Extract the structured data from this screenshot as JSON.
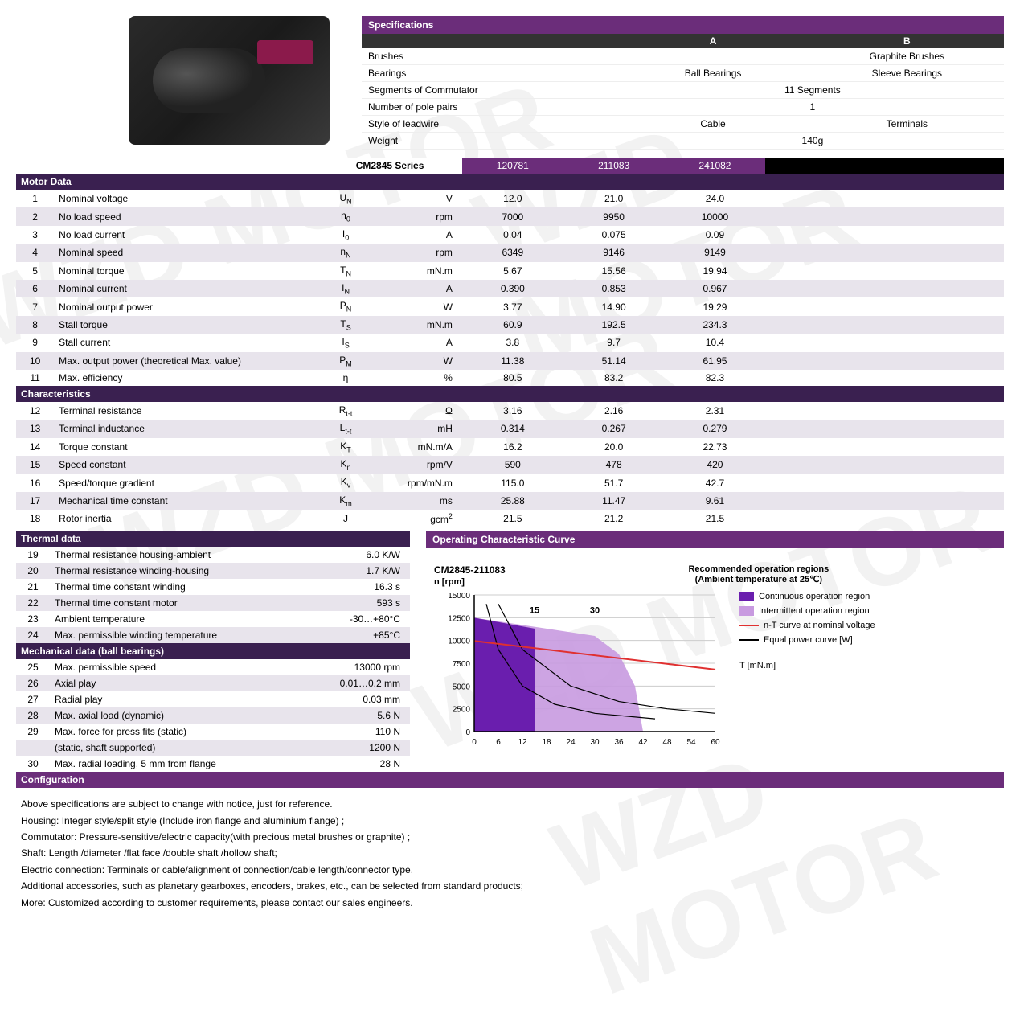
{
  "watermark": "WZD MOTOR",
  "specifications": {
    "title": "Specifications",
    "colA": "A",
    "colB": "B",
    "rows": [
      {
        "label": "Brushes",
        "a": "",
        "b": "Graphite Brushes",
        "wide": ""
      },
      {
        "label": "Bearings",
        "a": "Ball Bearings",
        "b": "Sleeve Bearings",
        "wide": ""
      },
      {
        "label": "Segments of Commutator",
        "wide": "11 Segments"
      },
      {
        "label": "Number of pole pairs",
        "wide": "1"
      },
      {
        "label": "Style of leadwire",
        "a": "Cable",
        "b": "Terminals",
        "wide": ""
      },
      {
        "label": "Weight",
        "wide": "140g"
      }
    ]
  },
  "series": "CM2845 Series",
  "models": [
    "120781",
    "211083",
    "241082"
  ],
  "sections": [
    {
      "title": "Motor Data",
      "purple": false,
      "rows": [
        {
          "n": "1",
          "name": "Nominal voltage",
          "sym": "U<sub>N</sub>",
          "unit": "V",
          "v": [
            "12.0",
            "21.0",
            "24.0"
          ]
        },
        {
          "n": "2",
          "name": "No load speed",
          "sym": "n<sub>0</sub>",
          "unit": "rpm",
          "v": [
            "7000",
            "9950",
            "10000"
          ]
        },
        {
          "n": "3",
          "name": "No load current",
          "sym": "I<sub>0</sub>",
          "unit": "A",
          "v": [
            "0.04",
            "0.075",
            "0.09"
          ]
        },
        {
          "n": "4",
          "name": "Nominal speed",
          "sym": "n<sub>N</sub>",
          "unit": "rpm",
          "v": [
            "6349",
            "9146",
            "9149"
          ]
        },
        {
          "n": "5",
          "name": "Nominal torque",
          "sym": "T<sub>N</sub>",
          "unit": "mN.m",
          "v": [
            "5.67",
            "15.56",
            "19.94"
          ]
        },
        {
          "n": "6",
          "name": "Nominal current",
          "sym": "I<sub>N</sub>",
          "unit": "A",
          "v": [
            "0.390",
            "0.853",
            "0.967"
          ]
        },
        {
          "n": "7",
          "name": "Nominal output power",
          "sym": "P<sub>N</sub>",
          "unit": "W",
          "v": [
            "3.77",
            "14.90",
            "19.29"
          ]
        },
        {
          "n": "8",
          "name": "Stall torque",
          "sym": "T<sub>S</sub>",
          "unit": "mN.m",
          "v": [
            "60.9",
            "192.5",
            "234.3"
          ]
        },
        {
          "n": "9",
          "name": "Stall current",
          "sym": "I<sub>S</sub>",
          "unit": "A",
          "v": [
            "3.8",
            "9.7",
            "10.4"
          ]
        },
        {
          "n": "10",
          "name": "Max. output power (theoretical Max. value)",
          "sym": "P<sub>M</sub>",
          "unit": "W",
          "v": [
            "11.38",
            "51.14",
            "61.95"
          ]
        },
        {
          "n": "11",
          "name": "Max. efficiency",
          "sym": "η",
          "unit": "%",
          "v": [
            "80.5",
            "83.2",
            "82.3"
          ]
        }
      ]
    },
    {
      "title": "Characteristics",
      "purple": false,
      "rows": [
        {
          "n": "12",
          "name": "Terminal resistance",
          "sym": "R<sub>t-t</sub>",
          "unit": "Ω",
          "v": [
            "3.16",
            "2.16",
            "2.31"
          ]
        },
        {
          "n": "13",
          "name": "Terminal inductance",
          "sym": "L<sub>t-t</sub>",
          "unit": "mH",
          "v": [
            "0.314",
            "0.267",
            "0.279"
          ]
        },
        {
          "n": "14",
          "name": "Torque constant",
          "sym": "K<sub>T</sub>",
          "unit": "mN.m/A",
          "v": [
            "16.2",
            "20.0",
            "22.73"
          ]
        },
        {
          "n": "15",
          "name": "Speed constant",
          "sym": "K<sub>n</sub>",
          "unit": "rpm/V",
          "v": [
            "590",
            "478",
            "420"
          ]
        },
        {
          "n": "16",
          "name": "Speed/torque gradient",
          "sym": "K<sub>v</sub>",
          "unit": "rpm/mN.m",
          "v": [
            "115.0",
            "51.7",
            "42.7"
          ]
        },
        {
          "n": "17",
          "name": "Mechanical time constant",
          "sym": "K<sub>m</sub>",
          "unit": "ms",
          "v": [
            "25.88",
            "11.47",
            "9.61"
          ]
        },
        {
          "n": "18",
          "name": "Rotor inertia",
          "sym": "J",
          "unit": "gcm<sup>2</sup>",
          "v": [
            "21.5",
            "21.2",
            "21.5"
          ]
        }
      ]
    }
  ],
  "thermal": {
    "title": "Thermal data",
    "rows": [
      {
        "n": "19",
        "name": "Thermal resistance housing-ambient",
        "val": "6.0 K/W"
      },
      {
        "n": "20",
        "name": "Thermal resistance winding-housing",
        "val": "1.7 K/W"
      },
      {
        "n": "21",
        "name": "Thermal time constant winding",
        "val": "16.3 s"
      },
      {
        "n": "22",
        "name": "Thermal time constant motor",
        "val": "593 s"
      },
      {
        "n": "23",
        "name": "Ambient temperature",
        "val": "-30…+80°C"
      },
      {
        "n": "24",
        "name": "Max. permissible winding temperature",
        "val": "+85°C"
      }
    ]
  },
  "mechanical": {
    "title": "Mechanical data (ball bearings)",
    "rows": [
      {
        "n": "25",
        "name": "Max. permissible speed",
        "val": "13000 rpm"
      },
      {
        "n": "26",
        "name": "Axial play",
        "val": "0.01…0.2 mm"
      },
      {
        "n": "27",
        "name": "Radial play",
        "val": "0.03  mm"
      },
      {
        "n": "28",
        "name": "Max. axial load (dynamic)",
        "val": "5.6 N"
      },
      {
        "n": "29",
        "name": "Max. force for press fits (static)",
        "val": "110 N"
      },
      {
        "n": "",
        "name": "(static, shaft supported)",
        "val": "1200 N"
      },
      {
        "n": "30",
        "name": "Max. radial loading, 5 mm from flange",
        "val": "28 N"
      }
    ]
  },
  "curve": {
    "header": "Operating Characteristic Curve",
    "title": "CM2845-211083",
    "sub": "n [rpm]",
    "regionsTitle": "Recommended operation regions",
    "regionsSub": "(Ambient temperature at 25℃)",
    "annotations": [
      "15",
      "30"
    ],
    "xlabel": "T [mN.m]",
    "type": "area+line",
    "xlim": [
      0,
      60
    ],
    "ylim": [
      0,
      15000
    ],
    "xticks": [
      0,
      6,
      12,
      18,
      24,
      30,
      36,
      42,
      48,
      54,
      60
    ],
    "yticks": [
      0,
      2500,
      5000,
      7500,
      10000,
      12500,
      15000
    ],
    "colors": {
      "continuous": "#6a1eae",
      "intermittent": "#c89ae0",
      "nt": "#e03030",
      "power": "#000000",
      "grid": "#cccccc",
      "axis": "#000000",
      "bg": "#ffffff"
    },
    "continuous_region": [
      [
        0,
        12500
      ],
      [
        15,
        11300
      ],
      [
        15,
        0
      ],
      [
        0,
        0
      ]
    ],
    "intermittent_region": [
      [
        0,
        12500
      ],
      [
        30,
        10500
      ],
      [
        36,
        8500
      ],
      [
        40,
        5000
      ],
      [
        42,
        0
      ],
      [
        0,
        0
      ]
    ],
    "nt_line": [
      [
        0,
        9950
      ],
      [
        60,
        6800
      ]
    ],
    "power_curves": [
      [
        [
          3,
          14000
        ],
        [
          6,
          9000
        ],
        [
          12,
          5000
        ],
        [
          20,
          3000
        ],
        [
          30,
          2000
        ],
        [
          45,
          1400
        ]
      ],
      [
        [
          6,
          14000
        ],
        [
          12,
          9000
        ],
        [
          24,
          5000
        ],
        [
          36,
          3300
        ],
        [
          48,
          2500
        ],
        [
          60,
          2000
        ]
      ]
    ],
    "legend": [
      {
        "swatch": "#6a1eae",
        "label": "Continuous operation region",
        "type": "box"
      },
      {
        "swatch": "#c89ae0",
        "label": "Intermittent operation region",
        "type": "box"
      },
      {
        "swatch": "#e03030",
        "label": "n-T curve at nominal voltage",
        "type": "line"
      },
      {
        "swatch": "#000000",
        "label": "Equal power curve [W]",
        "type": "line"
      }
    ]
  },
  "configuration": {
    "title": "Configuration",
    "lines": [
      "Above specifications are subject to change with notice, just for reference.",
      "Housing: Integer style/split style (Include iron flange and aluminium flange) ;",
      "Commutator: Pressure-sensitive/electric capacity(with precious metal brushes or graphite) ;",
      "Shaft: Length /diameter /flat face /double shaft /hollow shaft;",
      "Electric connection: Terminals or cable/alignment of connection/cable length/connector type.",
      "Additional accessories, such as planetary gearboxes, encoders, brakes, etc., can be selected from standard products;",
      "More: Customized according to customer requirements, please contact our sales engineers."
    ]
  }
}
